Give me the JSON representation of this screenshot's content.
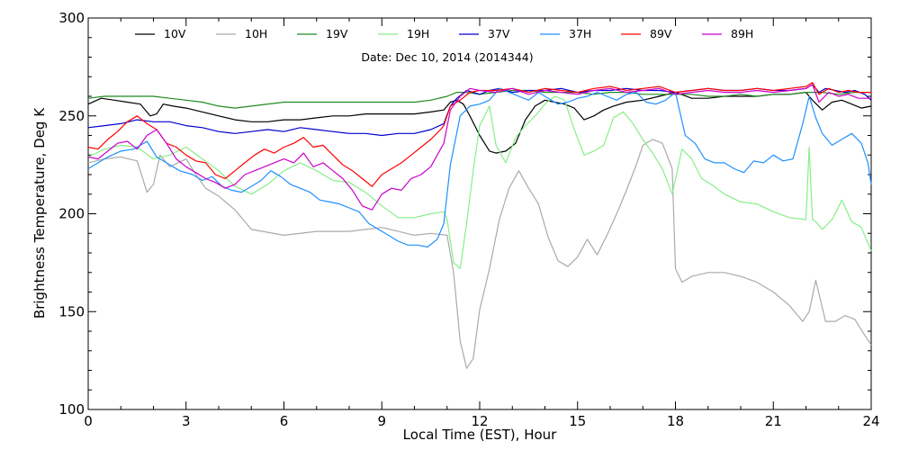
{
  "chart_data": {
    "type": "line",
    "subtitle": "Date: Dec 10, 2014 (2014344)",
    "xlabel": "Local Time (EST), Hour",
    "ylabel": "Brightness Temperature, Deg K",
    "xlim": [
      0,
      24
    ],
    "ylim": [
      100,
      300
    ],
    "xticks": [
      0,
      3,
      6,
      9,
      12,
      15,
      18,
      21,
      24
    ],
    "yticks": [
      100,
      150,
      200,
      250,
      300
    ],
    "grid": false,
    "legend_position": "top",
    "series": [
      {
        "name": "10V",
        "color": "#000000",
        "x": [
          0,
          0.4,
          0.8,
          1.2,
          1.6,
          1.9,
          2.1,
          2.3,
          2.6,
          3,
          3.5,
          4,
          4.5,
          5,
          5.5,
          6,
          6.5,
          7,
          7.5,
          8,
          8.5,
          9,
          9.5,
          10,
          10.5,
          10.9,
          11.1,
          11.3,
          11.5,
          11.7,
          12,
          12.3,
          12.5,
          12.8,
          13.1,
          13.4,
          13.7,
          14,
          14.3,
          14.6,
          14.9,
          15.2,
          15.5,
          15.8,
          16.1,
          16.5,
          17,
          17.5,
          18,
          18.5,
          19,
          19.5,
          20,
          20.5,
          21,
          21.5,
          22,
          22.2,
          22.5,
          22.8,
          23.1,
          23.4,
          23.7,
          24
        ],
        "y": [
          256,
          259,
          258,
          257,
          256,
          250,
          251,
          256,
          255,
          254,
          252,
          250,
          248,
          247,
          247,
          248,
          248,
          249,
          250,
          250,
          251,
          251,
          251,
          251,
          252,
          253,
          257,
          258,
          256,
          250,
          240,
          232,
          231,
          232,
          236,
          248,
          255,
          258,
          257,
          256,
          254,
          248,
          250,
          253,
          255,
          257,
          258,
          260,
          262,
          259,
          259,
          260,
          260,
          260,
          261,
          261,
          262,
          258,
          253,
          257,
          258,
          256,
          254,
          255
        ]
      },
      {
        "name": "10H",
        "color": "#aaaaaa",
        "x": [
          0,
          0.5,
          1,
          1.5,
          1.8,
          2,
          2.2,
          2.5,
          3,
          3.3,
          3.6,
          4,
          4.5,
          5,
          6,
          7,
          8,
          9,
          10,
          10.5,
          11,
          11.2,
          11.4,
          11.6,
          11.8,
          12,
          12.3,
          12.6,
          12.9,
          13.2,
          13.5,
          13.8,
          14.1,
          14.4,
          14.7,
          15,
          15.3,
          15.6,
          15.9,
          16.2,
          16.5,
          16.8,
          17,
          17.3,
          17.6,
          17.9,
          18,
          18.2,
          18.5,
          19,
          19.5,
          20,
          20.5,
          21,
          21.5,
          21.9,
          22.1,
          22.3,
          22.6,
          22.9,
          23.2,
          23.5,
          23.8,
          24
        ],
        "y": [
          226,
          228,
          229,
          227,
          211,
          215,
          230,
          224,
          228,
          220,
          213,
          209,
          202,
          192,
          189,
          191,
          191,
          193,
          189,
          190,
          189,
          170,
          135,
          121,
          126,
          151,
          172,
          197,
          213,
          222,
          213,
          205,
          188,
          176,
          173,
          178,
          187,
          179,
          189,
          200,
          212,
          225,
          235,
          238,
          236,
          223,
          172,
          165,
          168,
          170,
          170,
          168,
          165,
          160,
          153,
          145,
          150,
          166,
          145,
          145,
          148,
          146,
          138,
          133
        ]
      },
      {
        "name": "19V",
        "color": "#228b22",
        "x": [
          0,
          0.5,
          1,
          1.5,
          2,
          2.5,
          3,
          3.5,
          4,
          4.5,
          5,
          6,
          7,
          8,
          9,
          10,
          10.5,
          11,
          11.3,
          11.6,
          12,
          12.5,
          13,
          13.5,
          14,
          14.5,
          15,
          15.5,
          16,
          16.5,
          17,
          17.5,
          18,
          18.5,
          19,
          19.5,
          20,
          20.5,
          21,
          21.5,
          22,
          22.5,
          23,
          23.5,
          24
        ],
        "y": [
          259,
          260,
          260,
          260,
          260,
          259,
          258,
          257,
          255,
          254,
          255,
          257,
          257,
          257,
          257,
          257,
          258,
          260,
          262,
          262,
          261,
          262,
          263,
          263,
          262,
          262,
          262,
          261,
          262,
          262,
          261,
          261,
          261,
          261,
          260,
          260,
          261,
          260,
          261,
          261,
          262,
          262,
          261,
          262,
          262
        ]
      },
      {
        "name": "19H",
        "color": "#88ee88",
        "x": [
          0,
          0.5,
          1,
          1.5,
          2,
          2.5,
          3,
          3.5,
          4,
          4.5,
          5,
          5.5,
          6,
          6.5,
          7,
          7.5,
          8,
          8.5,
          9,
          9.5,
          10,
          10.5,
          10.9,
          11,
          11.2,
          11.4,
          11.6,
          11.8,
          12,
          12.3,
          12.5,
          12.8,
          13.1,
          13.4,
          13.7,
          14,
          14.3,
          14.6,
          14.9,
          15.2,
          15.5,
          15.8,
          16.1,
          16.4,
          16.7,
          17,
          17.3,
          17.6,
          17.9,
          18.2,
          18.5,
          18.8,
          19.1,
          19.5,
          20,
          20.5,
          21,
          21.5,
          22,
          22.1,
          22.2,
          22.3,
          22.5,
          22.8,
          23.1,
          23.4,
          23.7,
          24
        ],
        "y": [
          229,
          233,
          235,
          234,
          228,
          230,
          234,
          228,
          222,
          214,
          210,
          215,
          222,
          226,
          222,
          217,
          216,
          211,
          204,
          198,
          198,
          200,
          201,
          197,
          175,
          172,
          195,
          222,
          245,
          255,
          235,
          226,
          239,
          245,
          250,
          256,
          260,
          258,
          243,
          230,
          232,
          235,
          249,
          252,
          246,
          238,
          231,
          223,
          210,
          233,
          228,
          218,
          215,
          210,
          206,
          205,
          201,
          198,
          197,
          234,
          197,
          196,
          192,
          197,
          207,
          196,
          193,
          181
        ]
      },
      {
        "name": "37V",
        "color": "#0000cc",
        "x": [
          0,
          0.5,
          1,
          1.5,
          2,
          2.5,
          3,
          3.5,
          4,
          4.5,
          5,
          5.5,
          6,
          6.5,
          7,
          7.5,
          8,
          8.5,
          9,
          9.5,
          10,
          10.5,
          10.9,
          11.1,
          11.3,
          11.6,
          12,
          12.3,
          12.6,
          13,
          13.5,
          14,
          14.5,
          15,
          15.5,
          16,
          16.5,
          17,
          17.5,
          18,
          18.5,
          19,
          19.5,
          20,
          20.5,
          21,
          21.5,
          22,
          22.2,
          22.4,
          22.6,
          22.9,
          23.2,
          23.5,
          23.8,
          24
        ],
        "y": [
          244,
          245,
          246,
          248,
          247,
          247,
          245,
          244,
          242,
          241,
          242,
          243,
          242,
          244,
          243,
          242,
          241,
          241,
          240,
          241,
          241,
          243,
          246,
          255,
          259,
          263,
          261,
          263,
          264,
          262,
          263,
          263,
          264,
          262,
          263,
          263,
          264,
          263,
          263,
          262,
          263,
          264,
          263,
          263,
          264,
          263,
          263,
          264,
          266,
          262,
          264,
          263,
          262,
          263,
          261,
          258
        ]
      },
      {
        "name": "37H",
        "color": "#1e90ff",
        "x": [
          0,
          0.3,
          0.6,
          1,
          1.4,
          1.8,
          2.1,
          2.4,
          2.8,
          3.2,
          3.5,
          3.8,
          4.1,
          4.4,
          4.7,
          5,
          5.3,
          5.6,
          5.9,
          6.2,
          6.5,
          6.8,
          7.1,
          7.4,
          7.7,
          8,
          8.3,
          8.6,
          8.9,
          9.2,
          9.5,
          9.8,
          10.1,
          10.4,
          10.7,
          10.9,
          11.1,
          11.4,
          11.7,
          12,
          12.3,
          12.6,
          12.9,
          13.2,
          13.5,
          13.8,
          14.1,
          14.4,
          14.7,
          15,
          15.3,
          15.6,
          15.9,
          16.2,
          16.5,
          16.8,
          17.1,
          17.4,
          17.7,
          18,
          18.3,
          18.6,
          18.9,
          19.2,
          19.5,
          19.8,
          20.1,
          20.4,
          20.7,
          21,
          21.3,
          21.6,
          21.9,
          22.1,
          22.3,
          22.5,
          22.8,
          23.1,
          23.4,
          23.7,
          23.9,
          24
        ],
        "y": [
          223,
          226,
          229,
          232,
          233,
          237,
          229,
          226,
          222,
          220,
          217,
          219,
          214,
          212,
          211,
          214,
          217,
          222,
          219,
          215,
          213,
          211,
          207,
          206,
          205,
          203,
          201,
          195,
          192,
          189,
          186,
          184,
          184,
          183,
          187,
          195,
          225,
          250,
          255,
          256,
          258,
          264,
          262,
          260,
          258,
          262,
          259,
          256,
          257,
          259,
          260,
          262,
          260,
          258,
          261,
          262,
          257,
          256,
          258,
          262,
          240,
          236,
          228,
          226,
          226,
          223,
          221,
          227,
          226,
          230,
          227,
          228,
          246,
          260,
          249,
          241,
          235,
          238,
          241,
          236,
          226,
          215
        ]
      },
      {
        "name": "89V",
        "color": "#ff0000",
        "x": [
          0,
          0.3,
          0.6,
          0.9,
          1.2,
          1.5,
          1.8,
          2.1,
          2.4,
          2.7,
          3,
          3.3,
          3.6,
          3.9,
          4.2,
          4.5,
          4.8,
          5.1,
          5.4,
          5.7,
          6,
          6.3,
          6.6,
          6.9,
          7.2,
          7.5,
          7.8,
          8.1,
          8.4,
          8.7,
          9,
          9.3,
          9.6,
          9.9,
          10.2,
          10.5,
          10.8,
          10.9,
          11.1,
          11.4,
          11.7,
          12,
          12.5,
          13,
          13.5,
          14,
          14.5,
          15,
          15.5,
          16,
          16.5,
          17,
          17.5,
          18,
          18.5,
          19,
          19.5,
          20,
          20.5,
          21,
          21.5,
          22,
          22.2,
          22.4,
          22.7,
          23,
          23.3,
          23.6,
          24
        ],
        "y": [
          234,
          233,
          238,
          242,
          247,
          250,
          246,
          243,
          236,
          234,
          230,
          227,
          226,
          220,
          218,
          222,
          226,
          230,
          233,
          231,
          234,
          236,
          239,
          234,
          235,
          230,
          225,
          222,
          218,
          214,
          220,
          223,
          226,
          230,
          234,
          238,
          243,
          245,
          255,
          258,
          262,
          263,
          263,
          264,
          262,
          264,
          263,
          262,
          264,
          265,
          263,
          264,
          265,
          262,
          263,
          264,
          263,
          263,
          264,
          263,
          264,
          265,
          267,
          261,
          264,
          262,
          263,
          262,
          262
        ]
      },
      {
        "name": "89H",
        "color": "#cc00cc",
        "x": [
          0,
          0.3,
          0.6,
          0.9,
          1.2,
          1.5,
          1.8,
          2.1,
          2.4,
          2.7,
          3,
          3.3,
          3.6,
          3.9,
          4.2,
          4.5,
          4.8,
          5.1,
          5.4,
          5.7,
          6,
          6.3,
          6.6,
          6.9,
          7.2,
          7.5,
          7.8,
          8.1,
          8.4,
          8.7,
          9,
          9.3,
          9.6,
          9.9,
          10.2,
          10.5,
          10.8,
          10.9,
          11.1,
          11.4,
          11.7,
          12,
          12.5,
          13,
          13.5,
          14,
          14.5,
          15,
          15.5,
          16,
          16.5,
          17,
          17.5,
          18,
          18.5,
          19,
          19.5,
          20,
          20.5,
          21,
          21.5,
          22,
          22.2,
          22.4,
          22.7,
          23,
          23.3,
          23.6,
          24
        ],
        "y": [
          229,
          228,
          232,
          236,
          237,
          233,
          240,
          243,
          236,
          228,
          224,
          221,
          218,
          216,
          213,
          215,
          220,
          222,
          224,
          226,
          228,
          226,
          231,
          224,
          226,
          222,
          218,
          212,
          204,
          202,
          210,
          213,
          212,
          218,
          220,
          224,
          233,
          236,
          253,
          260,
          264,
          263,
          262,
          264,
          261,
          263,
          262,
          261,
          263,
          264,
          262,
          263,
          264,
          261,
          262,
          263,
          262,
          262,
          263,
          262,
          263,
          264,
          266,
          257,
          262,
          260,
          261,
          259,
          259
        ]
      }
    ]
  }
}
